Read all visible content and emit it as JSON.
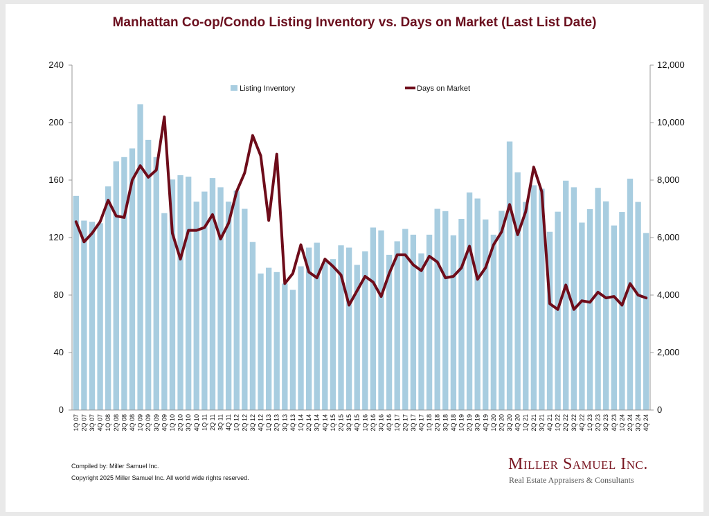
{
  "header": {
    "title": "Manhattan Co-op/Condo Listing Inventory vs. Days on Market (Last List Date)"
  },
  "footer": {
    "compiled": "Compiled by: Miller Samuel Inc.",
    "copyright": "Copyright 2025 Miller Samuel Inc.  All world wide rights reserved."
  },
  "brand": {
    "name": "Miller Samuel Inc.",
    "tagline": "Real Estate Appraisers & Consultants"
  },
  "colors": {
    "bar": "#a8cde0",
    "line": "#6e0c1a",
    "title": "#6b0f1e"
  },
  "chart_data": {
    "type": "bar+line",
    "title": "Manhattan Co-op/Condo Listing Inventory vs. Days on Market (Last List Date)",
    "categories": [
      "1Q 07",
      "2Q 07",
      "3Q 07",
      "4Q 07",
      "1Q 08",
      "2Q 08",
      "3Q 08",
      "4Q 08",
      "1Q 09",
      "2Q 09",
      "3Q 09",
      "4Q 09",
      "1Q 10",
      "2Q 10",
      "3Q 10",
      "4Q 10",
      "1Q 11",
      "2Q 11",
      "3Q 11",
      "4Q 11",
      "1Q 12",
      "2Q 12",
      "3Q 12",
      "4Q 12",
      "1Q 13",
      "2Q 13",
      "3Q 13",
      "4Q 13",
      "1Q 14",
      "2Q 14",
      "3Q 14",
      "4Q 14",
      "1Q 15",
      "2Q 15",
      "3Q 15",
      "4Q 15",
      "1Q 16",
      "2Q 16",
      "3Q 16",
      "4Q 16",
      "1Q 17",
      "2Q 17",
      "3Q 17",
      "4Q 17",
      "1Q 18",
      "2Q 18",
      "3Q 18",
      "4Q 18",
      "1Q 19",
      "2Q 19",
      "3Q 19",
      "4Q 19",
      "1Q 20",
      "2Q 20",
      "3Q 20",
      "4Q 20",
      "1Q 21",
      "2Q 21",
      "3Q 21",
      "4Q 21",
      "1Q 22",
      "2Q 22",
      "3Q 22",
      "4Q 22",
      "1Q 23",
      "2Q 23",
      "3Q 23",
      "4Q 23",
      "1Q 24",
      "2Q 24",
      "3Q 24",
      "4Q 24"
    ],
    "series": [
      {
        "name": "Listing Inventory",
        "type": "bar",
        "axis": "right",
        "values": [
          7450,
          6590,
          6550,
          6500,
          7780,
          8650,
          8800,
          9100,
          10640,
          9400,
          8800,
          6850,
          8020,
          8170,
          8120,
          7250,
          7600,
          8070,
          7750,
          7250,
          7630,
          7000,
          5850,
          4750,
          4950,
          4800,
          4400,
          4180,
          5000,
          5650,
          5820,
          5150,
          5250,
          5730,
          5650,
          5050,
          5520,
          6350,
          6250,
          5400,
          5870,
          6300,
          6100,
          5450,
          6100,
          7000,
          6920,
          6080,
          6650,
          7570,
          7360,
          6630,
          6100,
          6930,
          9340,
          8270,
          7240,
          7820,
          7700,
          6200,
          6900,
          7980,
          7750,
          6520,
          6990,
          7730,
          7260,
          6420,
          6890,
          8050,
          7240,
          6160
        ]
      },
      {
        "name": "Days on Market",
        "type": "line",
        "axis": "left",
        "values": [
          131,
          117,
          123,
          131,
          146,
          135,
          134,
          160,
          170,
          162,
          167,
          204,
          123,
          105,
          125,
          125,
          127,
          136,
          119,
          130,
          152,
          165,
          191,
          177,
          132,
          178,
          88,
          95,
          115,
          96,
          92,
          105,
          100,
          94,
          73,
          83,
          93,
          89,
          79,
          95,
          108,
          108,
          101,
          97,
          107,
          103,
          92,
          93,
          99,
          114,
          91,
          99,
          115,
          124,
          143,
          122,
          138,
          169,
          152,
          74,
          70,
          87,
          70,
          76,
          75,
          82,
          78,
          79,
          73,
          88,
          80,
          78
        ]
      }
    ],
    "y_left": {
      "min": 0,
      "max": 240,
      "ticks": [
        "0",
        "40",
        "80",
        "120",
        "160",
        "200",
        "240"
      ]
    },
    "y_right": {
      "min": 0,
      "max": 12000,
      "ticks": [
        "0",
        "2,000",
        "4,000",
        "6,000",
        "8,000",
        "10,000",
        "12,000"
      ]
    },
    "legend": {
      "position": "top",
      "entries": [
        "Listing Inventory",
        "Days on Market"
      ]
    },
    "grid": false
  }
}
